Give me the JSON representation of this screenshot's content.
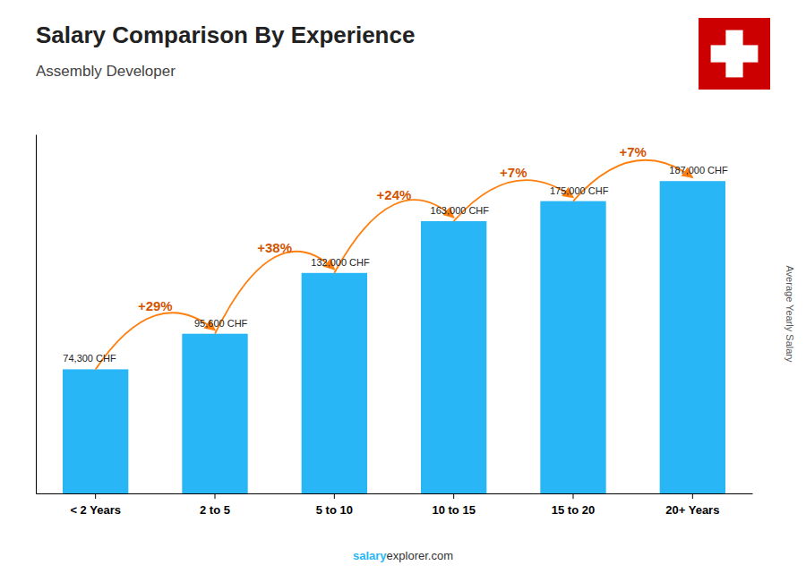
{
  "chart_data": {
    "type": "bar",
    "title": "Salary Comparison By Experience",
    "subtitle": "Assembly Developer",
    "ylabel": "Average Yearly Salary",
    "categories": [
      "< 2 Years",
      "2 to 5",
      "5 to 10",
      "10 to 15",
      "15 to 20",
      "20+ Years"
    ],
    "values": [
      74300,
      95600,
      132000,
      163000,
      175000,
      187000
    ],
    "value_labels": [
      "74,300 CHF",
      "95,600 CHF",
      "132,000 CHF",
      "163,000 CHF",
      "175,000 CHF",
      "187,000 CHF"
    ],
    "data_labels": true,
    "annotations": [
      "+29%",
      "+38%",
      "+24%",
      "+7%",
      "+7%"
    ],
    "footer": [
      "salary",
      "explorer.com"
    ],
    "color": "#29B6F6",
    "ylim": [
      0,
      215000
    ],
    "grid": false,
    "tick_labels": "x"
  }
}
